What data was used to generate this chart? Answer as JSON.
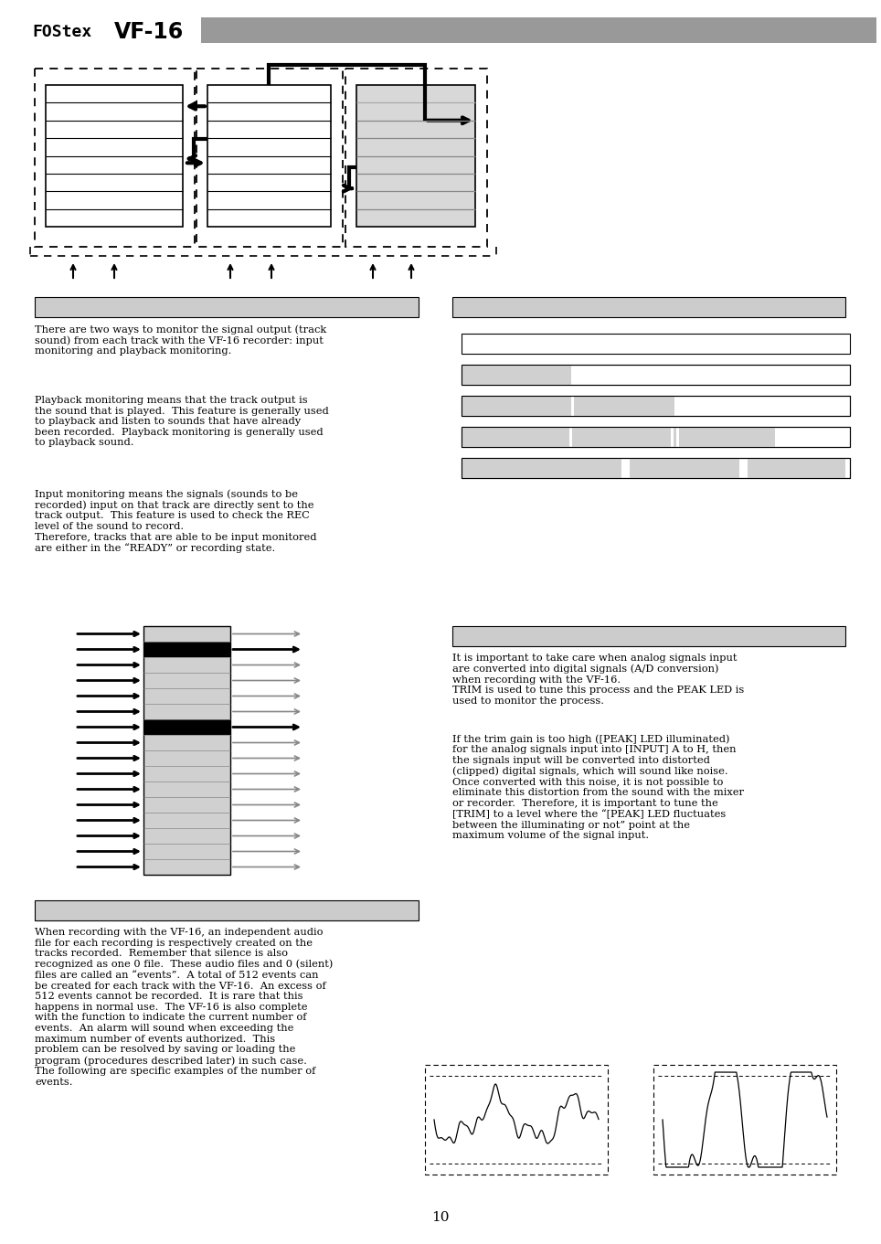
{
  "bg_color": "#ffffff",
  "header_bar_color": "#999999",
  "section_bar_color": "#cccccc",
  "page_number": "10",
  "para1_left": "There are two ways to monitor the signal output (track\nsound) from each track with the VF-16 recorder: input\nmonitoring and playback monitoring.",
  "para2_left": "Playback monitoring means that the track output is\nthe sound that is played.  This feature is generally used\nto playback and listen to sounds that have already\nbeen recorded.  Playback monitoring is generally used\nto playback sound.",
  "para3_left": "Input monitoring means the signals (sounds to be\nrecorded) input on that track are directly sent to the\ntrack output.  This feature is used to check the REC\nlevel of the sound to record.\nTherefore, tracks that are able to be input monitored\nare either in the “READY” or recording state.",
  "para4_left": "When recording with the VF-16, an independent audio\nfile for each recording is respectively created on the\ntracks recorded.  Remember that silence is also\nrecognized as one 0 file.  These audio files and 0 (silent)\nfiles are called an “events”.  A total of 512 events can\nbe created for each track with the VF-16.  An excess of\n512 events cannot be recorded.  It is rare that this\nhappens in normal use.  The VF-16 is also complete\nwith the function to indicate the current number of\nevents.  An alarm will sound when exceeding the\nmaximum number of events authorized.  This\nproblem can be resolved by saving or loading the\nprogram (procedures described later) in such case.\nThe following are specific examples of the number of\nevents.",
  "para1_right": "It is important to take care when analog signals input\nare converted into digital signals (A/D conversion)\nwhen recording with the VF-16.\nTRIM is used to tune this process and the PEAK LED is\nused to monitor the process.",
  "para2_right": "If the trim gain is too high ([PEAK] LED illuminated)\nfor the analog signals input into [INPUT] A to H, then\nthe signals input will be converted into distorted\n(clipped) digital signals, which will sound like noise.\nOnce converted with this noise, it is not possible to\neliminate this distortion from the sound with the mixer\nor recorder.  Therefore, it is important to tune the\n[TRIM] to a level where the “[PEAK] LED fluctuates\nbetween the illuminating or not” point at the\nmaximum volume of the signal input."
}
